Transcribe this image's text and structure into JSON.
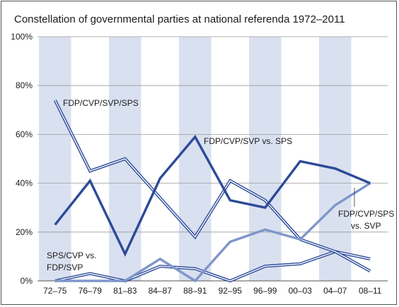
{
  "chart_data": {
    "type": "line",
    "title": "Constellation of governmental parties at national referenda 1972–2011",
    "categories": [
      "72–75",
      "76–79",
      "81–83",
      "84–87",
      "88–91",
      "92–95",
      "96–99",
      "00–03",
      "04–07",
      "08–11"
    ],
    "ylim": [
      0,
      100
    ],
    "y_ticks": [
      "0%",
      "20%",
      "40%",
      "60%",
      "80%",
      "100%"
    ],
    "shaded_bands": [
      "72–75",
      "81–83",
      "88–91",
      "96–99",
      "04–07"
    ],
    "grid": true,
    "series": [
      {
        "name": "FDP/CVP/SVP/SPS",
        "style": "double-line",
        "color": "#2c4a98",
        "values": [
          74,
          45,
          50,
          34,
          18,
          41,
          33,
          17,
          12,
          4
        ]
      },
      {
        "name": "FDP/CVP/SVP vs. SPS",
        "style": "thick",
        "color": "#2c4a98",
        "values": [
          23,
          41,
          11,
          42,
          59,
          33,
          30,
          49,
          46,
          40
        ]
      },
      {
        "name": "FDP/CVP/SPS vs. SVP",
        "style": "thick",
        "color": "#7f96c9",
        "values": [
          0,
          0,
          0,
          9,
          0,
          16,
          21,
          17,
          31,
          40
        ]
      },
      {
        "name": "SPS/CVP vs. FDP/SVP",
        "style": "double-line",
        "color": "#2c4a98",
        "values": [
          0,
          3,
          0,
          6,
          5,
          0,
          6,
          7,
          12,
          9
        ]
      }
    ],
    "annotations": {
      "s1": "FDP/CVP/SVP/SPS",
      "s2": "FDP/CVP/SVP vs. SPS",
      "s3_line1": "FDP/CVP/SPS",
      "s3_line2": "vs. SVP",
      "s4_line1": "SPS/CVP vs.",
      "s4_line2": "FDP/SVP"
    }
  }
}
